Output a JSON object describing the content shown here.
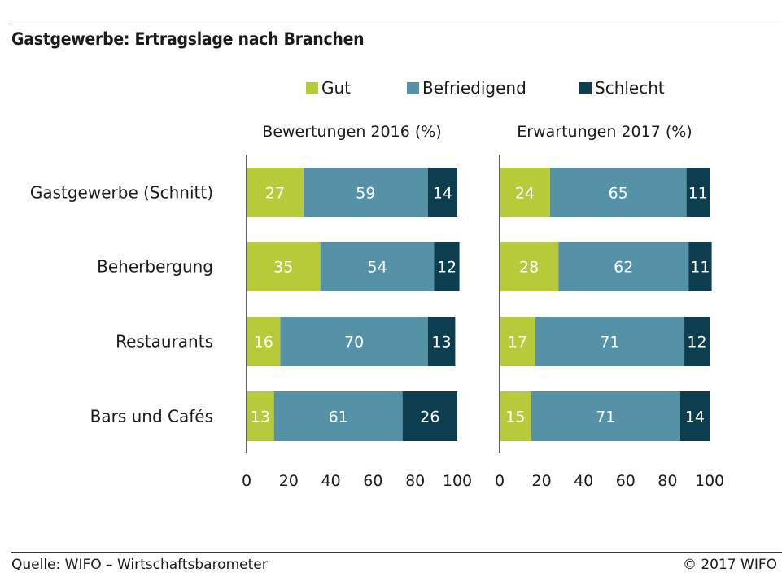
{
  "title": "Gastgewerbe: Ertragslage nach Branchen",
  "legend": [
    {
      "label": "Gut",
      "color": "#b7cb3a"
    },
    {
      "label": "Befriedigend",
      "color": "#5592a8"
    },
    {
      "label": "Schlecht",
      "color": "#0c3e50"
    }
  ],
  "source": "Quelle: WIFO – Wirtschaftsbarometer",
  "copyright": "© 2017 WIFO",
  "chart_data": [
    {
      "type": "bar",
      "orientation": "horizontal",
      "stacked": true,
      "title": "Bewertungen 2016 (%)",
      "categories": [
        "Gastgewerbe (Schnitt)",
        "Beherbergung",
        "Restaurants",
        "Bars und Cafés"
      ],
      "series": [
        {
          "name": "Gut",
          "values": [
            27,
            35,
            16,
            13
          ]
        },
        {
          "name": "Befriedigend",
          "values": [
            59,
            54,
            70,
            61
          ]
        },
        {
          "name": "Schlecht",
          "values": [
            14,
            12,
            13,
            26
          ]
        }
      ],
      "xlim": [
        0,
        100
      ],
      "xticks": [
        0,
        20,
        40,
        60,
        80,
        100
      ]
    },
    {
      "type": "bar",
      "orientation": "horizontal",
      "stacked": true,
      "title": "Erwartungen 2017 (%)",
      "categories": [
        "Gastgewerbe (Schnitt)",
        "Beherbergung",
        "Restaurants",
        "Bars und Cafés"
      ],
      "series": [
        {
          "name": "Gut",
          "values": [
            24,
            28,
            17,
            15
          ]
        },
        {
          "name": "Befriedigend",
          "values": [
            65,
            62,
            71,
            71
          ]
        },
        {
          "name": "Schlecht",
          "values": [
            11,
            11,
            12,
            14
          ]
        }
      ],
      "xlim": [
        0,
        100
      ],
      "xticks": [
        0,
        20,
        40,
        60,
        80,
        100
      ]
    }
  ]
}
